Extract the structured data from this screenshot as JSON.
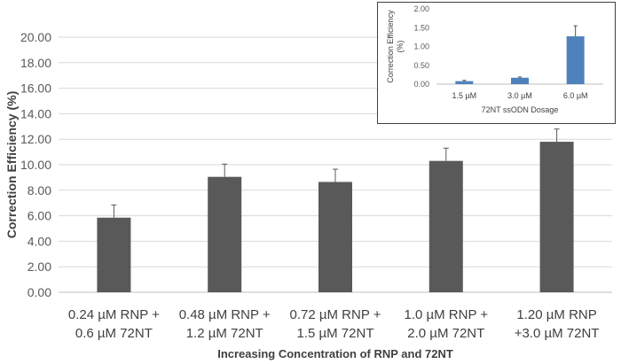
{
  "chart_data": [
    {
      "type": "bar",
      "title": "",
      "categories": [
        [
          "0.24 µM RNP +",
          "0.6 µM 72NT"
        ],
        [
          "0.48 µM RNP +",
          "1.2 µM 72NT"
        ],
        [
          "0.72 µM RNP +",
          "1.5 µM 72NT"
        ],
        [
          "1.0 µM RNP +",
          "2.0 µM 72NT"
        ],
        [
          "1.20 µM RNP",
          "+3.0 µM 72NT"
        ]
      ],
      "values": [
        5.85,
        9.05,
        8.65,
        10.3,
        11.8
      ],
      "errors": [
        1.0,
        1.0,
        1.0,
        1.0,
        1.0
      ],
      "xlabel": "Increasing Concentration of RNP and 72NT",
      "ylabel": "Correction Efficiency (%)",
      "ylim": [
        0,
        20
      ],
      "yticks": [
        "0.00",
        "2.00",
        "4.00",
        "6.00",
        "8.00",
        "10.00",
        "12.00",
        "14.00",
        "16.00",
        "18.00",
        "20.00"
      ],
      "bar_color": "#595959",
      "grid": true
    },
    {
      "type": "bar",
      "title": "",
      "categories": [
        "1.5 µM",
        "3.0 µM",
        "6.0 µM"
      ],
      "values": [
        0.08,
        0.17,
        1.27
      ],
      "errors": [
        0.02,
        0.02,
        0.28
      ],
      "xlabel": "72NT ssODN Dosage",
      "ylabel": [
        "Correction Efficiency",
        "(%)"
      ],
      "ylim": [
        0,
        2
      ],
      "yticks": [
        "0.00",
        "0.50",
        "1.00",
        "1.50",
        "2.00"
      ],
      "bar_color": "#4f81bd",
      "grid": false
    }
  ]
}
